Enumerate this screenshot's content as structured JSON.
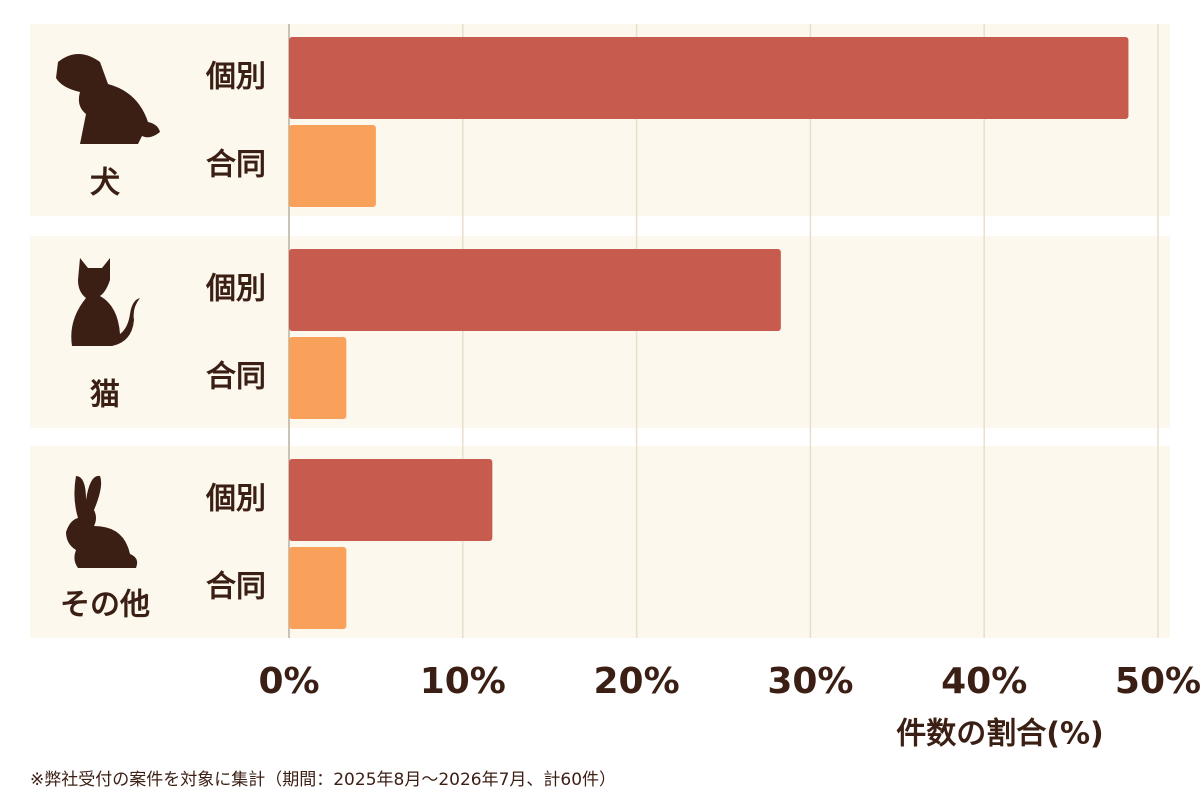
{
  "chart_data": {
    "type": "bar",
    "orientation": "horizontal",
    "categories": [
      "犬",
      "猫",
      "その他"
    ],
    "series": [
      {
        "name": "個別",
        "color": "#c65b4e",
        "values": [
          48.3,
          28.3,
          11.7
        ]
      },
      {
        "name": "合同",
        "color": "#f9a05a",
        "values": [
          5,
          3.3,
          3.3
        ]
      }
    ],
    "xlim": [
      0,
      50
    ],
    "xticks": [
      {
        "value": 0,
        "label": "0%"
      },
      {
        "value": 10,
        "label": "10%"
      },
      {
        "value": 20,
        "label": "20%"
      },
      {
        "value": 30,
        "label": "30%"
      },
      {
        "value": 40,
        "label": "40%"
      },
      {
        "value": 50,
        "label": "50%"
      }
    ],
    "xlabel": "件数の割合(%)",
    "grid": true,
    "note": "※弊社受付の案件を対象に集計（期間：2025年8月〜2026年7月、計60件）"
  }
}
